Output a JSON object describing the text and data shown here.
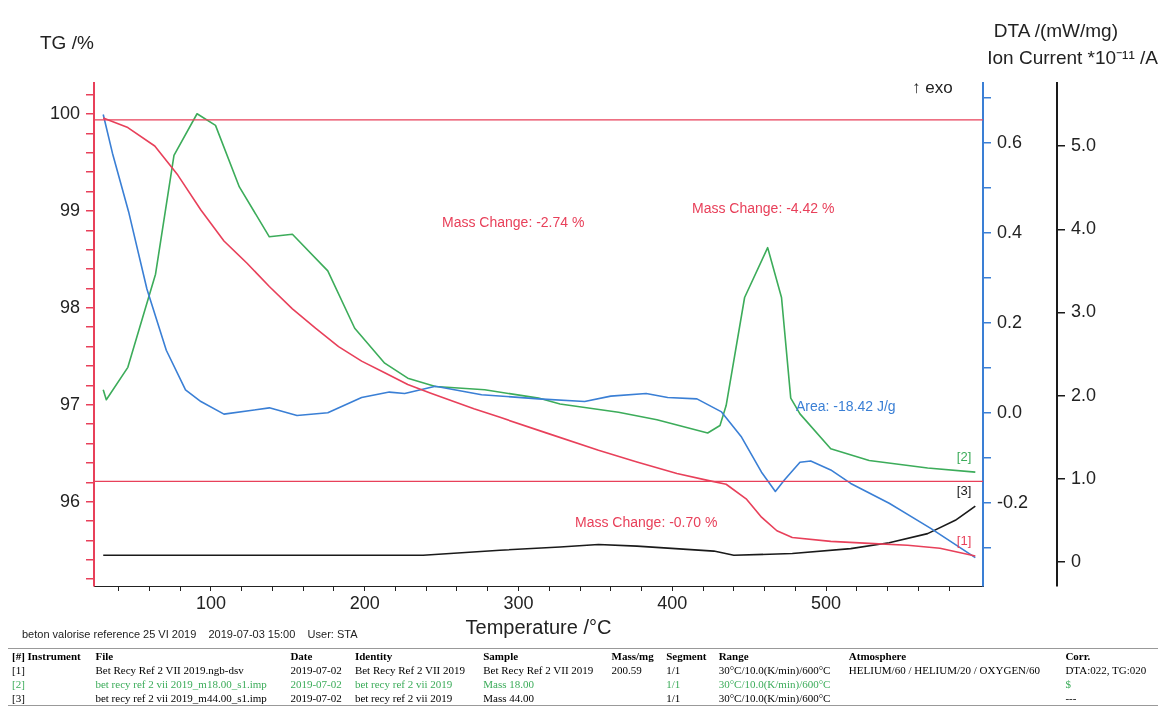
{
  "chart_data": {
    "type": "line",
    "xlabel": "Temperature /°C",
    "ylabel": "TG /%",
    "y2label": "DTA /(mW/mg)",
    "y3label": "Ion Current *10⁻¹¹ /A",
    "xlim": [
      24,
      602
    ],
    "xticks": [
      {
        "value": 40,
        "label": null
      },
      {
        "value": 60,
        "label": null
      },
      {
        "value": 80,
        "label": null
      },
      100,
      {
        "value": 120,
        "label": null
      },
      {
        "value": 140,
        "label": null
      },
      {
        "value": 160,
        "label": null
      },
      {
        "value": 180,
        "label": null
      },
      200,
      {
        "value": 220,
        "label": null
      },
      {
        "value": 240,
        "label": null
      },
      {
        "value": 260,
        "label": null
      },
      {
        "value": 280,
        "label": null
      },
      300,
      {
        "value": 320,
        "label": null
      },
      {
        "value": 340,
        "label": null
      },
      {
        "value": 360,
        "label": null
      },
      {
        "value": 380,
        "label": null
      },
      400,
      {
        "value": 420,
        "label": null
      },
      {
        "value": 440,
        "label": null
      },
      {
        "value": 460,
        "label": null
      },
      {
        "value": 480,
        "label": null
      },
      500,
      {
        "value": 520,
        "label": null
      },
      {
        "value": 540,
        "label": null
      },
      {
        "value": 560,
        "label": null
      },
      {
        "value": 580,
        "label": null
      }
    ],
    "ylim": [
      95.13,
      100.32
    ],
    "yticks": [
      {
        "value": 95.2,
        "label": null
      },
      {
        "value": 95.4,
        "label": null
      },
      {
        "value": 95.6,
        "label": null
      },
      {
        "value": 95.8,
        "label": null
      },
      96,
      {
        "value": 96.2,
        "label": null
      },
      {
        "value": 96.4,
        "label": null
      },
      {
        "value": 96.6,
        "label": null
      },
      {
        "value": 96.8,
        "label": null
      },
      97,
      {
        "value": 97.2,
        "label": null
      },
      {
        "value": 97.4,
        "label": null
      },
      {
        "value": 97.6,
        "label": null
      },
      {
        "value": 97.8,
        "label": null
      },
      98,
      {
        "value": 98.2,
        "label": null
      },
      {
        "value": 98.4,
        "label": null
      },
      {
        "value": 98.6,
        "label": null
      },
      {
        "value": 98.8,
        "label": null
      },
      99,
      {
        "value": 99.2,
        "label": null
      },
      {
        "value": 99.4,
        "label": null
      },
      {
        "value": 99.6,
        "label": null
      },
      {
        "value": 99.8,
        "label": null
      },
      100,
      {
        "value": 100.2,
        "label": null
      }
    ],
    "y2lim": [
      -0.385,
      0.733
    ],
    "y2ticks": [
      {
        "value": -0.3,
        "label": null
      },
      -0.2,
      {
        "value": -0.1,
        "label": null
      },
      {
        "value": 0,
        "label": "0.0"
      },
      {
        "value": 0.1,
        "label": null
      },
      0.2,
      {
        "value": 0.3,
        "label": null
      },
      0.4,
      {
        "value": 0.5,
        "label": null
      },
      0.6,
      {
        "value": 0.7,
        "label": null
      }
    ],
    "y3lim": [
      -0.29,
      5.76
    ],
    "y3ticks": [
      0,
      {
        "value": 1,
        "label": "1.0"
      },
      {
        "value": 2,
        "label": "2.0"
      },
      {
        "value": 3,
        "label": "3.0"
      },
      {
        "value": 4,
        "label": "4.0"
      },
      {
        "value": 5,
        "label": "5.0"
      }
    ],
    "series": [
      {
        "name": "[1]",
        "color": "#e8405a",
        "axis": "y",
        "x": [
          30,
          46,
          63.5,
          78.5,
          93.5,
          108.5,
          123.5,
          138,
          153,
          168,
          183,
          198,
          213,
          228,
          243,
          271,
          288,
          318,
          352,
          377,
          403,
          423,
          435,
          448,
          458,
          468,
          478,
          503,
          528,
          553,
          574,
          597
        ],
        "values": [
          99.96,
          99.86,
          99.67,
          99.37,
          99.01,
          98.69,
          98.46,
          98.22,
          97.99,
          97.79,
          97.6,
          97.45,
          97.33,
          97.21,
          97.12,
          96.96,
          96.87,
          96.71,
          96.53,
          96.41,
          96.29,
          96.22,
          96.18,
          96.03,
          95.84,
          95.7,
          95.63,
          95.59,
          95.57,
          95.55,
          95.52,
          95.44
        ]
      },
      {
        "color": "#3a7fd5",
        "axis": "y2",
        "x": [
          30,
          36,
          46.5,
          58.4,
          71,
          83.5,
          93.5,
          108.5,
          138,
          156,
          176,
          198,
          216,
          226,
          246,
          276,
          313,
          343,
          360,
          383,
          397,
          416,
          432,
          445,
          458,
          467,
          473,
          483,
          490,
          503,
          516,
          541,
          568,
          597
        ],
        "values": [
          0.663,
          0.577,
          0.447,
          0.275,
          0.139,
          0.051,
          0.025,
          -0.003,
          0.011,
          -0.006,
          0,
          0.034,
          0.046,
          0.043,
          0.059,
          0.04,
          0.031,
          0.025,
          0.037,
          0.043,
          0.034,
          0.031,
          0.002,
          -0.054,
          -0.132,
          -0.175,
          -0.149,
          -0.11,
          -0.107,
          -0.127,
          -0.157,
          -0.201,
          -0.257,
          -0.322
        ]
      },
      {
        "name": "[2]",
        "color": "#3cac5a",
        "axis": "y3",
        "x": [
          30,
          32,
          46,
          64,
          76,
          91,
          103,
          118.5,
          138,
          153,
          176,
          193.5,
          213,
          228,
          246,
          278,
          313,
          327,
          365,
          390,
          423,
          431,
          435,
          447,
          462,
          471,
          477,
          483,
          503,
          528,
          566,
          597
        ],
        "values": [
          2.07,
          1.95,
          2.34,
          3.46,
          4.89,
          5.39,
          5.25,
          4.51,
          3.91,
          3.94,
          3.5,
          2.81,
          2.39,
          2.21,
          2.11,
          2.07,
          1.97,
          1.9,
          1.8,
          1.71,
          1.55,
          1.64,
          1.88,
          3.18,
          3.78,
          3.18,
          1.97,
          1.78,
          1.36,
          1.22,
          1.13,
          1.08
        ]
      },
      {
        "name": "[3]",
        "color": "#1a1a1a",
        "axis": "y3",
        "x": [
          30,
          100,
          180,
          238,
          288,
          327,
          352,
          377,
          427,
          440,
          478,
          516,
          541,
          566,
          584,
          597
        ],
        "values": [
          0.08,
          0.08,
          0.08,
          0.08,
          0.14,
          0.18,
          0.21,
          0.19,
          0.13,
          0.08,
          0.1,
          0.16,
          0.23,
          0.34,
          0.5,
          0.67
        ]
      }
    ],
    "ref_lines": [
      {
        "axis": "y",
        "value": 99.94,
        "color": "#e8405a"
      },
      {
        "axis": "y",
        "value": 96.21,
        "color": "#e8405a"
      }
    ],
    "annotations": [
      "Mass Change: -2.74 %",
      "Mass Change: -4.42 %",
      "Mass Change: -0.70 %",
      "Area: -18.42 J/g",
      "↑ exo",
      "beton valorise reference 25 VI 2019    2019-07-03 15:00    User: STA",
      "[#] Instrument\tFile\tDate\tIdentity\tSample\tMass/mg\tSegment\tRange\tAtmosphere\tCorr.",
      "[1]\tBet Recy Ref 2 VII 2019.ngb-dsv\t2019-07-02\tBet Recy Ref 2 VII 2019\tBet Recy Ref 2 VII 2019\t200.59\t1/1\t30°C/10.0(K/min)/600°C\tHELIUM/60 / HELIUM/20 / OXYGEN/60\tDTA:022, TG:020",
      "[2]\tbet recy ref 2 vii 2019_m18.00_s1.imp\t2019-07-02\tbet recy ref 2 vii 2019\tMass   18.00\t\t1/1\t30°C/10.0(K/min)/600°C\t\t$",
      "[3]\tbet recy ref 2 vii 2019_m44.00_s1.imp\t2019-07-02\tbet recy ref 2 vii 2019\tMass   44.00\t\t1/1\t30°C/10.0(K/min)/600°C\t\t---"
    ]
  }
}
